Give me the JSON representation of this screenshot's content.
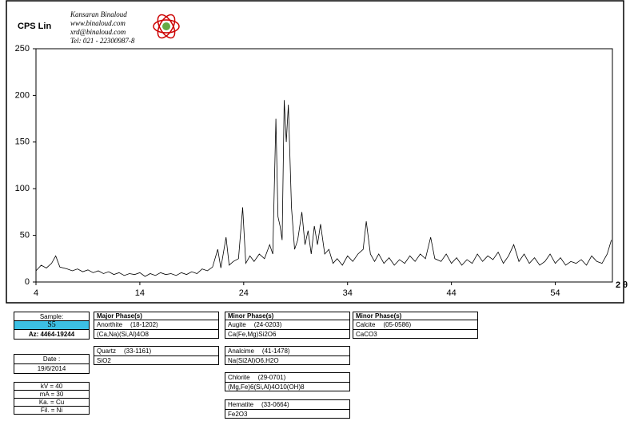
{
  "chart_data": {
    "type": "line",
    "ylabel": "CPS Lin",
    "xlabel": "2 θ",
    "color": "#000000",
    "xlim": [
      4,
      59.5
    ],
    "ylim": [
      0,
      250
    ],
    "xticks": [
      4,
      14,
      24,
      34,
      44,
      54
    ],
    "yticks": [
      0,
      50,
      100,
      150,
      200,
      250
    ],
    "x": [
      4,
      4.5,
      5,
      5.5,
      5.9,
      6.3,
      7,
      7.5,
      8,
      8.5,
      9,
      9.5,
      10,
      10.5,
      11,
      11.5,
      12,
      12.5,
      13,
      13.5,
      14,
      14.5,
      15,
      15.5,
      16,
      16.5,
      17,
      17.5,
      18,
      18.5,
      19,
      19.5,
      20,
      20.5,
      21,
      21.5,
      21.8,
      22.3,
      22.6,
      23,
      23.5,
      23.9,
      24.2,
      24.6,
      25,
      25.5,
      26,
      26.5,
      26.8,
      27.1,
      27.3,
      27.5,
      27.7,
      27.9,
      28.1,
      28.3,
      28.6,
      28.9,
      29.2,
      29.6,
      29.9,
      30.2,
      30.5,
      30.8,
      31.1,
      31.4,
      31.8,
      32.2,
      32.6,
      33,
      33.5,
      34,
      34.5,
      35,
      35.5,
      35.8,
      36.2,
      36.6,
      37,
      37.5,
      38,
      38.5,
      39,
      39.5,
      40,
      40.5,
      41,
      41.5,
      42,
      42.4,
      43,
      43.5,
      44,
      44.5,
      45,
      45.5,
      46,
      46.5,
      47,
      47.5,
      48,
      48.5,
      49,
      49.5,
      50,
      50.5,
      51,
      51.5,
      52,
      52.5,
      53,
      53.5,
      54,
      54.5,
      55,
      55.5,
      56,
      56.5,
      57,
      57.5,
      58,
      58.5,
      59,
      59.4
    ],
    "values": [
      12,
      18,
      15,
      20,
      28,
      16,
      14,
      12,
      14,
      11,
      13,
      10,
      12,
      9,
      11,
      8,
      10,
      7,
      9,
      8,
      10,
      6,
      9,
      7,
      10,
      8,
      9,
      7,
      10,
      8,
      11,
      9,
      14,
      12,
      16,
      35,
      15,
      48,
      18,
      22,
      25,
      80,
      20,
      28,
      22,
      30,
      25,
      40,
      30,
      175,
      70,
      60,
      45,
      195,
      150,
      190,
      80,
      35,
      45,
      75,
      40,
      55,
      30,
      60,
      40,
      62,
      30,
      35,
      20,
      25,
      18,
      28,
      22,
      30,
      35,
      65,
      30,
      22,
      30,
      20,
      26,
      18,
      24,
      20,
      28,
      22,
      30,
      25,
      48,
      25,
      22,
      30,
      20,
      26,
      18,
      24,
      20,
      30,
      22,
      28,
      24,
      32,
      20,
      28,
      40,
      22,
      30,
      20,
      26,
      18,
      22,
      30,
      20,
      26,
      18,
      22,
      20,
      24,
      18,
      28,
      22,
      20,
      30,
      45
    ]
  },
  "lab": {
    "name": "Kansaran Binaloud",
    "web": "www.binaloud.com",
    "email": "xrd@binaloud.com",
    "tel": "Tel: 021 - 22300987-8"
  },
  "sample_info": {
    "sample_label": "Sample:",
    "sample": "S5",
    "az": "Az: 4464-19244",
    "date_label": "Date :",
    "date": "19/6/2014",
    "kv": "kV = 40",
    "ma": "mA = 30",
    "ka": "Ka. = Cu",
    "fil": "Fil. = Ni"
  },
  "phases": [
    {
      "title": "Major Phase(s)",
      "items": [
        {
          "name": "Anorthite",
          "code": "(18-1202)",
          "formula": "(Ca,Na)(Si,Al)4O8"
        },
        {
          "name": "Quartz",
          "code": "(33-1161)",
          "formula": "SiO2"
        }
      ]
    },
    {
      "title": "Minor Phase(s)",
      "items": [
        {
          "name": "Augite",
          "code": "(24-0203)",
          "formula": "Ca(Fe,Mg)Si2O6"
        },
        {
          "name": "Analcime",
          "code": "(41-1478)",
          "formula": "Na(Si2Al)O6,H2O"
        },
        {
          "name": "Chlorite",
          "code": "(29-0701)",
          "formula": "(Mg,Fe)6(Si,Al)4O10(OH)8"
        },
        {
          "name": "Hematite",
          "code": "(33-0664)",
          "formula": "Fe2O3"
        }
      ]
    },
    {
      "title": "Minor Phase(s)",
      "items": [
        {
          "name": "Calcite",
          "code": "(05-0586)",
          "formula": "CaCO3"
        }
      ]
    }
  ]
}
